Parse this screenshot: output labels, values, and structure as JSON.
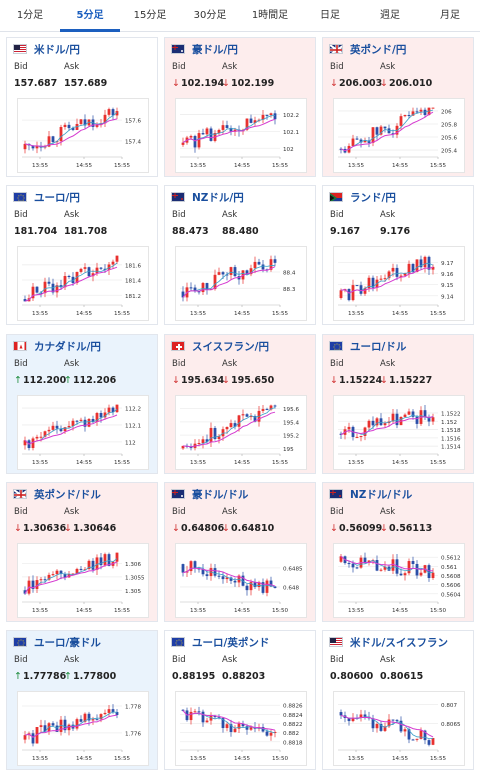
{
  "tabs": [
    "1分足",
    "5分足",
    "15分足",
    "30分足",
    "1時間足",
    "日足",
    "週足",
    "月足"
  ],
  "active_tab": 1,
  "labels": {
    "bid": "Bid",
    "ask": "Ask"
  },
  "colors": {
    "up": "#1a8a3a",
    "down": "#d03030",
    "link": "#1a4f9e",
    "ma": "#d53bd0",
    "ma2": "#3aa0c8",
    "candle_up": "#e8312f",
    "candle_down": "#2b4fa8"
  },
  "cards": [
    {
      "pair": "米ドル/円",
      "flag": "flag-us-icon",
      "bid": "157.687",
      "ask": "157.689",
      "trend": "neutral",
      "state": "neutral",
      "chart_data": {
        "type": "candlestick",
        "x_ticks": [
          "13:55",
          "14:55",
          "15:55"
        ],
        "y_ticks": [
          "157.6",
          "157.4"
        ],
        "start": 157.32,
        "end": 157.69,
        "low": 157.28,
        "high": 157.72
      }
    },
    {
      "pair": "豪ドル/円",
      "flag": "flag-au-icon",
      "bid": "102.194",
      "ask": "102.199",
      "trend": "down",
      "state": "down",
      "chart_data": {
        "type": "candlestick",
        "x_ticks": [
          "13:55",
          "14:55",
          "15:55"
        ],
        "y_ticks": [
          "102.2",
          "102.1",
          "102"
        ],
        "start": 102.02,
        "end": 102.2,
        "low": 101.97,
        "high": 102.24
      }
    },
    {
      "pair": "英ポンド/円",
      "flag": "flag-gb-icon",
      "bid": "206.003",
      "ask": "206.010",
      "trend": "down",
      "state": "down",
      "chart_data": {
        "type": "candlestick",
        "x_ticks": [
          "13:55",
          "14:55",
          "15:55"
        ],
        "y_ticks": [
          "206",
          "205.8",
          "205.6",
          "205.4"
        ],
        "start": 205.42,
        "end": 206.0,
        "low": 205.35,
        "high": 206.05
      }
    },
    {
      "pair": "ユーロ/円",
      "flag": "flag-eu-icon",
      "bid": "181.704",
      "ask": "181.708",
      "trend": "neutral",
      "state": "neutral",
      "chart_data": {
        "type": "candlestick",
        "x_ticks": [
          "13:55",
          "14:55",
          "15:55"
        ],
        "y_ticks": [
          "181.6",
          "181.4",
          "181.2"
        ],
        "start": 181.15,
        "end": 181.7,
        "low": 181.12,
        "high": 181.72
      }
    },
    {
      "pair": "NZドル/円",
      "flag": "flag-nz-icon",
      "bid": "88.473",
      "ask": "88.480",
      "trend": "neutral",
      "state": "neutral",
      "chart_data": {
        "type": "candlestick",
        "x_ticks": [
          "13:55",
          "14:55",
          "15:55"
        ],
        "y_ticks": [
          "88.4",
          "88.3"
        ],
        "start": 88.28,
        "end": 88.47,
        "low": 88.22,
        "high": 88.5
      }
    },
    {
      "pair": "ランド/円",
      "flag": "flag-za-icon",
      "bid": "9.167",
      "ask": "9.176",
      "trend": "neutral",
      "state": "neutral",
      "chart_data": {
        "type": "candlestick",
        "x_ticks": [
          "13:55",
          "14:55",
          "15:55"
        ],
        "y_ticks": [
          "9.17",
          "9.16",
          "9.15",
          "9.14"
        ],
        "start": 9.138,
        "end": 9.172,
        "low": 9.135,
        "high": 9.176
      }
    },
    {
      "pair": "カナダドル/円",
      "flag": "flag-ca-icon",
      "bid": "112.200",
      "ask": "112.206",
      "trend": "up",
      "state": "up",
      "chart_data": {
        "type": "candlestick",
        "x_ticks": [
          "13:55",
          "14:55",
          "15:55"
        ],
        "y_ticks": [
          "112.2",
          "112.1",
          "112"
        ],
        "start": 111.98,
        "end": 112.2,
        "low": 111.95,
        "high": 112.22
      }
    },
    {
      "pair": "スイスフラン/円",
      "flag": "flag-ch-icon",
      "bid": "195.634",
      "ask": "195.650",
      "trend": "down",
      "state": "down",
      "chart_data": {
        "type": "candlestick",
        "x_ticks": [
          "13:55",
          "14:55",
          "15:55"
        ],
        "y_ticks": [
          "195.6",
          "195.4",
          "195.2",
          "195"
        ],
        "start": 195.0,
        "end": 195.63,
        "low": 194.97,
        "high": 195.66
      }
    },
    {
      "pair": "ユーロ/ドル",
      "flag": "flag-eu-icon",
      "bid": "1.15224",
      "ask": "1.15227",
      "trend": "down",
      "state": "down",
      "chart_data": {
        "type": "candlestick",
        "x_ticks": [
          "13:55",
          "14:55",
          "15:55"
        ],
        "y_ticks": [
          "1.1522",
          "1.152",
          "1.1518",
          "1.1516",
          "1.1514"
        ],
        "start": 1.1517,
        "end": 1.1522,
        "low": 1.1513,
        "high": 1.1524
      }
    },
    {
      "pair": "英ポンド/ドル",
      "flag": "flag-gb-icon",
      "bid": "1.30636",
      "ask": "1.30646",
      "trend": "down",
      "state": "down",
      "chart_data": {
        "type": "candlestick",
        "x_ticks": [
          "13:55",
          "14:55",
          "15:55"
        ],
        "y_ticks": [
          "1.306",
          "1.3055",
          "1.305"
        ],
        "start": 1.305,
        "end": 1.3062,
        "low": 1.3047,
        "high": 1.3064
      }
    },
    {
      "pair": "豪ドル/ドル",
      "flag": "flag-au-icon",
      "bid": "0.64806",
      "ask": "0.64810",
      "trend": "down",
      "state": "down",
      "chart_data": {
        "type": "candlestick",
        "x_ticks": [
          "13:55",
          "14:55",
          "15:50"
        ],
        "y_ticks": [
          "0.6485",
          "0.648"
        ],
        "start": 0.6486,
        "end": 0.6479,
        "low": 0.6477,
        "high": 0.6489
      }
    },
    {
      "pair": "NZドル/ドル",
      "flag": "flag-nz-icon",
      "bid": "0.56099",
      "ask": "0.56113",
      "trend": "down",
      "state": "down",
      "chart_data": {
        "type": "candlestick",
        "x_ticks": [
          "13:55",
          "14:55",
          "15:50"
        ],
        "y_ticks": [
          "0.5612",
          "0.561",
          "0.5608",
          "0.5606",
          "0.5604"
        ],
        "start": 0.5611,
        "end": 0.5609,
        "low": 0.5603,
        "high": 0.5613
      }
    },
    {
      "pair": "ユーロ/豪ドル",
      "flag": "flag-eu-icon",
      "bid": "1.77786",
      "ask": "1.77800",
      "trend": "up",
      "state": "up",
      "chart_data": {
        "type": "candlestick",
        "x_ticks": [
          "13:55",
          "14:55",
          "15:55"
        ],
        "y_ticks": [
          "1.778",
          "1.776"
        ],
        "start": 1.7755,
        "end": 1.7778,
        "low": 1.775,
        "high": 1.7784
      }
    },
    {
      "pair": "ユーロ/英ポンド",
      "flag": "flag-eu-icon",
      "bid": "0.88195",
      "ask": "0.88203",
      "trend": "neutral",
      "state": "neutral",
      "chart_data": {
        "type": "candlestick",
        "x_ticks": [
          "13:55",
          "14:55",
          "15:50"
        ],
        "y_ticks": [
          "0.8826",
          "0.8824",
          "0.8822",
          "0.882",
          "0.8818"
        ],
        "start": 0.8825,
        "end": 0.8819,
        "low": 0.8817,
        "high": 0.8827
      }
    },
    {
      "pair": "米ドル/スイスフラン",
      "flag": "flag-us-icon",
      "bid": "0.80600",
      "ask": "0.80615",
      "trend": "neutral",
      "state": "neutral",
      "chart_data": {
        "type": "candlestick",
        "x_ticks": [
          "13:55",
          "14:55",
          "15:55"
        ],
        "y_ticks": [
          "0.807",
          "0.8065"
        ],
        "start": 0.8068,
        "end": 0.8061,
        "low": 0.8059,
        "high": 0.8071
      }
    }
  ]
}
